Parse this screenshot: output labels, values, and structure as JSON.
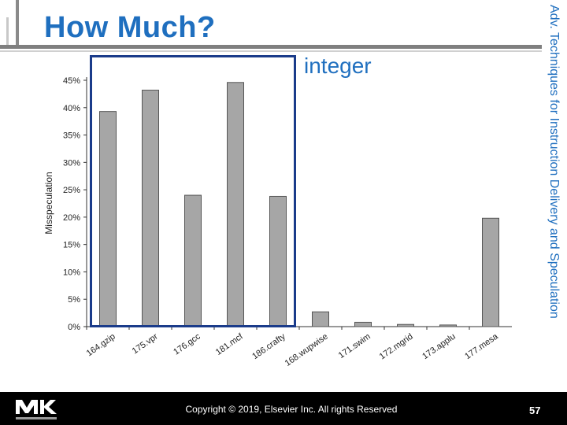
{
  "slide": {
    "title": "How Much?",
    "side_title": "Adv. Techniques for Instruction Delivery and Speculation",
    "annotation": "integer",
    "copyright": "Copyright © 2019, Elsevier Inc. All rights Reserved",
    "page_number": "57",
    "logo_caption": "MORGAN KAUFMANN"
  },
  "colors": {
    "title": "#1f6fbf",
    "bar_fill": "#a6a6a6",
    "bar_stroke": "#555555",
    "highlight_box": "#1a3b8a",
    "footer": "#000000"
  },
  "chart_data": {
    "type": "bar",
    "categories": [
      "164.gzip",
      "175.vpr",
      "176.gcc",
      "181.mcf",
      "186.crafty",
      "168.wupwise",
      "171.swim",
      "172.mgrid",
      "173.applu",
      "177.mesa"
    ],
    "values": [
      39.3,
      43.2,
      24.0,
      44.6,
      23.8,
      2.7,
      0.8,
      0.4,
      0.3,
      19.8
    ],
    "ylabel": "Misspeculation",
    "ylim": [
      0,
      45
    ],
    "yticks": [
      "0%",
      "5%",
      "10%",
      "15%",
      "20%",
      "25%",
      "30%",
      "35%",
      "40%",
      "45%"
    ],
    "grid": false
  }
}
